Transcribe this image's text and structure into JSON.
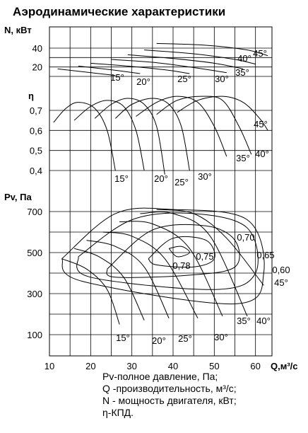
{
  "chart_data": {
    "type": "line",
    "title": "Аэродинамические характеристики",
    "x_axis": {
      "label": "Q,м³/с",
      "ticks": [
        10,
        20,
        30,
        40,
        50,
        60
      ],
      "range": [
        10,
        64
      ]
    },
    "panels": [
      {
        "id": "power",
        "ylabel": "N, кВт",
        "yticks": [
          40,
          20
        ],
        "series_labels": [
          "15°",
          "20°",
          "25°",
          "30°",
          "35°",
          "40°",
          "45°"
        ],
        "series": [
          {
            "name": "15°",
            "points": [
              [
                12,
                18
              ],
              [
                20,
                14
              ],
              [
                26,
                11
              ]
            ]
          },
          {
            "name": "20°",
            "points": [
              [
                17,
                21
              ],
              [
                25,
                17
              ],
              [
                32,
                13
              ]
            ]
          },
          {
            "name": "25°",
            "points": [
              [
                20,
                24
              ],
              [
                29,
                21
              ],
              [
                38,
                17
              ],
              [
                44,
                13
              ]
            ]
          },
          {
            "name": "30°",
            "points": [
              [
                25,
                28
              ],
              [
                35,
                25
              ],
              [
                44,
                20
              ],
              [
                53,
                14
              ]
            ]
          },
          {
            "name": "35°",
            "points": [
              [
                29,
                33
              ],
              [
                40,
                29
              ],
              [
                50,
                24
              ],
              [
                57,
                18
              ]
            ]
          },
          {
            "name": "40°",
            "points": [
              [
                33,
                38
              ],
              [
                45,
                34
              ],
              [
                55,
                28
              ],
              [
                60,
                23
              ]
            ]
          },
          {
            "name": "45°",
            "points": [
              [
                36,
                45
              ],
              [
                48,
                43
              ],
              [
                58,
                38
              ],
              [
                63,
                32
              ]
            ]
          }
        ]
      },
      {
        "id": "efficiency",
        "ylabel": "η",
        "yticks": [
          "0,7",
          "0,6",
          "0,5",
          "0,4"
        ],
        "series_labels": [
          "15°",
          "20°",
          "25°",
          "30°",
          "35°",
          "40°",
          "45°"
        ],
        "series": [
          {
            "name": "15°",
            "points": [
              [
                11,
                0.64
              ],
              [
                14,
                0.71
              ],
              [
                17,
                0.74
              ],
              [
                21,
                0.71
              ],
              [
                24,
                0.6
              ],
              [
                26,
                0.4
              ]
            ]
          },
          {
            "name": "20°",
            "points": [
              [
                16,
                0.65
              ],
              [
                20,
                0.72
              ],
              [
                24,
                0.75
              ],
              [
                28,
                0.72
              ],
              [
                31,
                0.6
              ],
              [
                33,
                0.4
              ]
            ]
          },
          {
            "name": "25°",
            "points": [
              [
                21,
                0.66
              ],
              [
                25,
                0.73
              ],
              [
                29,
                0.76
              ],
              [
                33,
                0.73
              ],
              [
                36,
                0.62
              ],
              [
                38,
                0.38
              ]
            ]
          },
          {
            "name": "30°",
            "points": [
              [
                26,
                0.66
              ],
              [
                30,
                0.73
              ],
              [
                35,
                0.76
              ],
              [
                39,
                0.73
              ],
              [
                42,
                0.62
              ],
              [
                44,
                0.4
              ]
            ]
          },
          {
            "name": "35°",
            "points": [
              [
                31,
                0.67
              ],
              [
                36,
                0.74
              ],
              [
                41,
                0.77
              ],
              [
                46,
                0.74
              ],
              [
                50,
                0.62
              ],
              [
                53,
                0.47
              ]
            ]
          },
          {
            "name": "40°",
            "points": [
              [
                36,
                0.68
              ],
              [
                41,
                0.75
              ],
              [
                47,
                0.77
              ],
              [
                52,
                0.75
              ],
              [
                56,
                0.62
              ],
              [
                59,
                0.48
              ]
            ]
          },
          {
            "name": "45°",
            "points": [
              [
                41,
                0.69
              ],
              [
                46,
                0.75
              ],
              [
                52,
                0.77
              ],
              [
                57,
                0.74
              ],
              [
                61,
                0.66
              ],
              [
                63,
                0.6
              ]
            ]
          }
        ]
      },
      {
        "id": "pressure",
        "ylabel": "Pv, Па",
        "yticks": [
          700,
          500,
          300,
          100
        ],
        "blade_labels": [
          "15°",
          "20°",
          "25°",
          "30°",
          "35°",
          "40°",
          "45°"
        ],
        "efficiency_labels": [
          "0,78",
          "0,75",
          "0,70",
          "0,65",
          "0,60"
        ],
        "blade_series": [
          {
            "name": "15°",
            "points": [
              [
                13,
                470
              ],
              [
                19,
                420
              ],
              [
                24,
                320
              ],
              [
                27,
                150
              ]
            ]
          },
          {
            "name": "20°",
            "points": [
              [
                16,
                520
              ],
              [
                22,
                480
              ],
              [
                28,
                380
              ],
              [
                33,
                170
              ]
            ]
          },
          {
            "name": "25°",
            "points": [
              [
                19,
                560
              ],
              [
                26,
                530
              ],
              [
                33,
                430
              ],
              [
                39,
                180
              ]
            ]
          },
          {
            "name": "30°",
            "points": [
              [
                23,
                600
              ],
              [
                30,
                580
              ],
              [
                38,
                470
              ],
              [
                46,
                180
              ]
            ]
          },
          {
            "name": "35°",
            "points": [
              [
                27,
                650
              ],
              [
                35,
                640
              ],
              [
                44,
                520
              ],
              [
                52,
                190
              ]
            ]
          },
          {
            "name": "40°",
            "points": [
              [
                32,
                690
              ],
              [
                40,
                690
              ],
              [
                49,
                580
              ],
              [
                58,
                190
              ]
            ]
          },
          {
            "name": "45°",
            "points": [
              [
                36,
                710
              ],
              [
                45,
                690
              ],
              [
                53,
                570
              ],
              [
                62,
                340
              ]
            ]
          }
        ],
        "efficiency_contours": [
          {
            "name": "0,78",
            "points": [
              [
                39,
                520
              ],
              [
                42,
                530
              ],
              [
                44,
                500
              ],
              [
                41,
                480
              ],
              [
                39,
                520
              ]
            ]
          },
          {
            "name": "0,75",
            "points": [
              [
                34,
                470
              ],
              [
                40,
                570
              ],
              [
                48,
                560
              ],
              [
                50,
                470
              ],
              [
                45,
                430
              ],
              [
                36,
                440
              ],
              [
                34,
                470
              ]
            ]
          },
          {
            "name": "0,70",
            "points": [
              [
                24,
                420
              ],
              [
                35,
                610
              ],
              [
                48,
                630
              ],
              [
                55,
                560
              ],
              [
                55,
                430
              ],
              [
                44,
                390
              ],
              [
                26,
                380
              ],
              [
                24,
                420
              ]
            ]
          },
          {
            "name": "0,65",
            "points": [
              [
                17,
                480
              ],
              [
                30,
                660
              ],
              [
                45,
                690
              ],
              [
                58,
                620
              ],
              [
                60,
                400
              ],
              [
                50,
                320
              ],
              [
                20,
                380
              ],
              [
                17,
                480
              ]
            ]
          },
          {
            "name": "0,60",
            "points": [
              [
                13,
                470
              ],
              [
                26,
                690
              ],
              [
                40,
                710
              ],
              [
                58,
                660
              ],
              [
                62,
                400
              ],
              [
                55,
                250
              ],
              [
                18,
                360
              ],
              [
                13,
                470
              ]
            ]
          }
        ]
      }
    ]
  },
  "legend": {
    "pv": "Pv-полное давление, Па;",
    "q": "Q -производительность, м³/с;",
    "n": "N - мощность двигателя, кВт;",
    "eta": "η-КПД."
  }
}
